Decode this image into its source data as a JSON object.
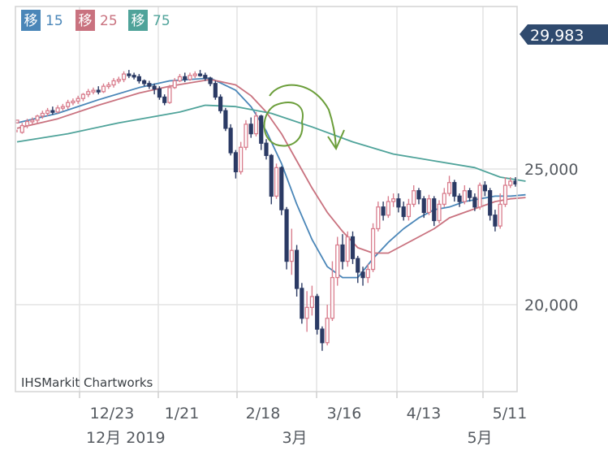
{
  "chart_data": {
    "type": "candlestick",
    "price_badge": "29,983",
    "credit": "IHSMarkit Chartworks",
    "legend": [
      {
        "tag": "移",
        "period": "15",
        "color": "#4a86b8"
      },
      {
        "tag": "移",
        "period": "25",
        "color": "#c9727f"
      },
      {
        "tag": "移",
        "period": "75",
        "color": "#4fa39a"
      }
    ],
    "y_ticks": [
      {
        "value": 25000,
        "label": "25,000"
      },
      {
        "value": 20000,
        "label": "20,000"
      }
    ],
    "ylim": [
      16800,
      29983
    ],
    "x_ticks": [
      "12/23",
      "1/21",
      "2/18",
      "3/16",
      "4/13",
      "5/11"
    ],
    "month_labels": [
      "12月 2019",
      "3月",
      "5月"
    ],
    "colors": {
      "up": "#d97e8e",
      "down": "#2b3a64",
      "badge": "#2f4a6e"
    },
    "candles": [
      [
        26700,
        26800,
        26450,
        26350
      ],
      [
        26350,
        26600,
        26700,
        26300
      ],
      [
        26600,
        26750,
        26850,
        26500
      ],
      [
        26750,
        26800,
        26900,
        26650
      ],
      [
        26800,
        26950,
        27000,
        26700
      ],
      [
        26950,
        27050,
        27150,
        26850
      ],
      [
        27050,
        27150,
        27250,
        26950
      ],
      [
        27150,
        27100,
        27300,
        27000
      ],
      [
        27100,
        27250,
        27350,
        27050
      ],
      [
        27250,
        27300,
        27400,
        27150
      ],
      [
        27300,
        27450,
        27550,
        27200
      ],
      [
        27450,
        27500,
        27600,
        27350
      ],
      [
        27500,
        27600,
        27700,
        27400
      ],
      [
        27600,
        27750,
        27800,
        27500
      ],
      [
        27750,
        27850,
        27950,
        27650
      ],
      [
        27850,
        27900,
        28000,
        27750
      ],
      [
        27900,
        27850,
        28050,
        27750
      ],
      [
        27850,
        28050,
        28150,
        27800
      ],
      [
        28050,
        28100,
        28200,
        27950
      ],
      [
        28100,
        28250,
        28350,
        28000
      ],
      [
        28250,
        28300,
        28400,
        28150
      ],
      [
        28300,
        28500,
        28600,
        28200
      ],
      [
        28500,
        28450,
        28650,
        28350
      ],
      [
        28450,
        28400,
        28550,
        28300
      ],
      [
        28400,
        28250,
        28500,
        28150
      ],
      [
        28250,
        28150,
        28300,
        28050
      ],
      [
        28150,
        28050,
        28250,
        27950
      ],
      [
        28050,
        27950,
        28150,
        27750
      ],
      [
        27950,
        27650,
        28050,
        27550
      ],
      [
        27650,
        27450,
        27750,
        27350
      ],
      [
        27450,
        28000,
        28100,
        27400
      ],
      [
        28000,
        28250,
        28350,
        27950
      ],
      [
        28250,
        28400,
        28500,
        28200
      ],
      [
        28400,
        28300,
        28550,
        28200
      ],
      [
        28300,
        28450,
        28550,
        28250
      ],
      [
        28450,
        28500,
        28600,
        28350
      ],
      [
        28500,
        28450,
        28650,
        28400
      ],
      [
        28450,
        28350,
        28550,
        28250
      ],
      [
        28350,
        28150,
        28400,
        28050
      ],
      [
        28150,
        27650,
        28250,
        27550
      ],
      [
        27650,
        27150,
        27750,
        27050
      ],
      [
        27150,
        26500,
        27250,
        26400
      ],
      [
        26500,
        25600,
        26650,
        25500
      ],
      [
        25600,
        24900,
        25700,
        24650
      ],
      [
        24900,
        25800,
        26000,
        24800
      ],
      [
        25800,
        26650,
        26800,
        25700
      ],
      [
        26650,
        26300,
        26900,
        26150
      ],
      [
        26300,
        26950,
        27100,
        26200
      ],
      [
        26950,
        25950,
        27000,
        25700
      ],
      [
        25950,
        25500,
        26100,
        25350
      ],
      [
        25500,
        24000,
        25550,
        23700
      ],
      [
        24000,
        25050,
        25200,
        23900
      ],
      [
        25050,
        23500,
        25100,
        23300
      ],
      [
        23500,
        21600,
        23600,
        21300
      ],
      [
        21600,
        22000,
        22800,
        21100
      ],
      [
        22000,
        20600,
        22200,
        20300
      ],
      [
        20600,
        19500,
        20800,
        19300
      ],
      [
        19500,
        19900,
        20500,
        19000
      ],
      [
        19900,
        20300,
        20700,
        19600
      ],
      [
        20300,
        19100,
        20400,
        18900
      ],
      [
        19100,
        18600,
        19200,
        18300
      ],
      [
        18600,
        19500,
        20000,
        18500
      ],
      [
        19500,
        21000,
        21600,
        19400
      ],
      [
        21000,
        22200,
        22500,
        20700
      ],
      [
        22200,
        21600,
        22600,
        21300
      ],
      [
        21600,
        22500,
        22700,
        21400
      ],
      [
        22500,
        21700,
        22700,
        21500
      ],
      [
        21700,
        21200,
        21800,
        20800
      ],
      [
        21200,
        21000,
        21400,
        20700
      ],
      [
        21000,
        21300,
        21500,
        20800
      ],
      [
        21300,
        22800,
        23000,
        21200
      ],
      [
        22800,
        23600,
        23800,
        22700
      ],
      [
        23600,
        23300,
        23800,
        23100
      ],
      [
        23300,
        23800,
        24000,
        23200
      ],
      [
        23800,
        23900,
        24100,
        23600
      ],
      [
        23900,
        23600,
        24100,
        23400
      ],
      [
        23600,
        23250,
        23800,
        23100
      ],
      [
        23250,
        23700,
        23900,
        23100
      ],
      [
        23700,
        24200,
        24400,
        23600
      ],
      [
        24200,
        23900,
        24300,
        23700
      ],
      [
        23900,
        23400,
        24000,
        23200
      ],
      [
        23400,
        23900,
        24050,
        23300
      ],
      [
        23900,
        23100,
        24000,
        22900
      ],
      [
        23100,
        23700,
        23850,
        23000
      ],
      [
        23700,
        24100,
        24300,
        23600
      ],
      [
        24100,
        24500,
        24750,
        24000
      ],
      [
        24500,
        24000,
        24600,
        23800
      ],
      [
        24000,
        23800,
        24100,
        23600
      ],
      [
        23800,
        24200,
        24400,
        23700
      ],
      [
        24200,
        23950,
        24300,
        23800
      ],
      [
        23950,
        23600,
        24100,
        23450
      ],
      [
        23600,
        24400,
        24500,
        23500
      ],
      [
        24400,
        24200,
        24550,
        24000
      ],
      [
        24200,
        23300,
        24300,
        23100
      ],
      [
        23300,
        22900,
        23500,
        22700
      ],
      [
        22900,
        23700,
        24100,
        22800
      ],
      [
        23700,
        24400,
        24700,
        23600
      ],
      [
        24400,
        24550,
        24700,
        24300
      ],
      [
        24550,
        24450,
        24700,
        24350
      ]
    ],
    "series": [
      {
        "name": "15",
        "color": "#4a86b8",
        "values": [
          [
            0,
            26700
          ],
          [
            8,
            27050
          ],
          [
            16,
            27550
          ],
          [
            24,
            28000
          ],
          [
            30,
            28250
          ],
          [
            38,
            28350
          ],
          [
            43,
            27900
          ],
          [
            46,
            27300
          ],
          [
            49,
            26400
          ],
          [
            52,
            25200
          ],
          [
            55,
            23700
          ],
          [
            58,
            22400
          ],
          [
            61,
            21400
          ],
          [
            64,
            21000
          ],
          [
            67,
            21000
          ],
          [
            70,
            21700
          ],
          [
            73,
            22300
          ],
          [
            76,
            22800
          ],
          [
            79,
            23200
          ],
          [
            82,
            23500
          ],
          [
            85,
            23600
          ],
          [
            88,
            23800
          ],
          [
            91,
            23900
          ],
          [
            94,
            24000
          ],
          [
            97,
            24000
          ],
          [
            100,
            24050
          ]
        ]
      },
      {
        "name": "25",
        "color": "#c9727f",
        "values": [
          [
            0,
            26500
          ],
          [
            8,
            26850
          ],
          [
            16,
            27350
          ],
          [
            24,
            27800
          ],
          [
            30,
            28050
          ],
          [
            38,
            28300
          ],
          [
            43,
            28100
          ],
          [
            46,
            27700
          ],
          [
            49,
            27100
          ],
          [
            52,
            26300
          ],
          [
            55,
            25300
          ],
          [
            58,
            24300
          ],
          [
            61,
            23400
          ],
          [
            64,
            22700
          ],
          [
            67,
            22100
          ],
          [
            70,
            21900
          ],
          [
            73,
            21900
          ],
          [
            76,
            22200
          ],
          [
            79,
            22500
          ],
          [
            82,
            22800
          ],
          [
            85,
            23200
          ],
          [
            88,
            23400
          ],
          [
            91,
            23600
          ],
          [
            94,
            23800
          ],
          [
            97,
            23900
          ],
          [
            100,
            23950
          ]
        ]
      },
      {
        "name": "75",
        "color": "#4fa39a",
        "values": [
          [
            0,
            26000
          ],
          [
            10,
            26300
          ],
          [
            20,
            26700
          ],
          [
            32,
            27100
          ],
          [
            37,
            27350
          ],
          [
            43,
            27300
          ],
          [
            50,
            27050
          ],
          [
            58,
            26550
          ],
          [
            66,
            26000
          ],
          [
            74,
            25550
          ],
          [
            82,
            25300
          ],
          [
            90,
            25050
          ],
          [
            95,
            24700
          ],
          [
            100,
            24550
          ]
        ]
      }
    ]
  }
}
